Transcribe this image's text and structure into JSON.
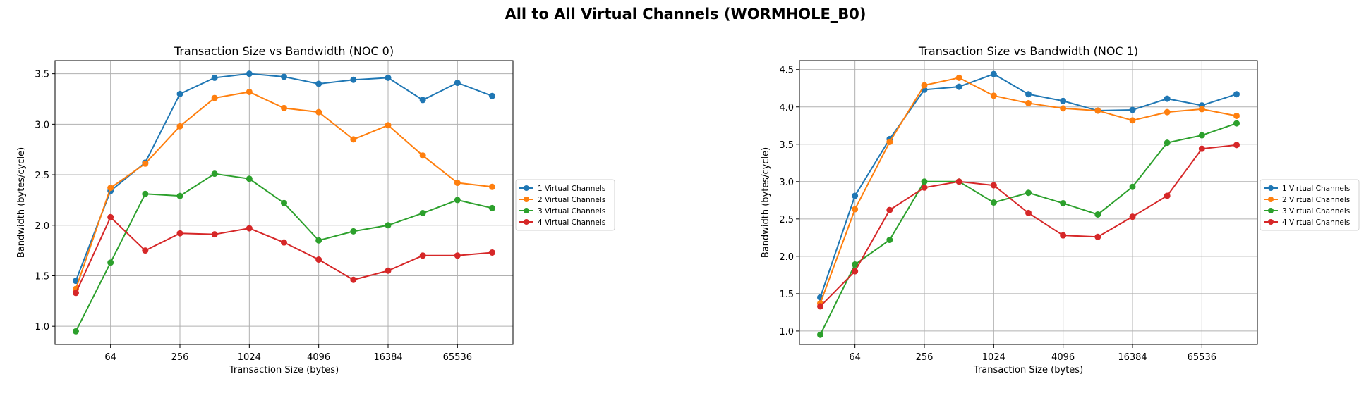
{
  "figure": {
    "title": "All to All Virtual Channels (WORMHOLE_B0)"
  },
  "chart_data": [
    {
      "type": "line",
      "title": "Transaction Size vs Bandwidth (NOC 0)",
      "xlabel": "Transaction Size (bytes)",
      "ylabel": "Bandwidth (bytes/cycle)",
      "xscale": "log2",
      "x": [
        32,
        64,
        128,
        256,
        512,
        1024,
        2048,
        4096,
        8192,
        16384,
        32768,
        65536,
        131072
      ],
      "xticks": [
        64,
        256,
        1024,
        4096,
        16384,
        65536
      ],
      "xtick_labels": [
        "64",
        "256",
        "1024",
        "4096",
        "16384",
        "65536"
      ],
      "ylim": [
        0.82,
        3.63
      ],
      "yticks": [
        1.0,
        1.5,
        2.0,
        2.5,
        3.0,
        3.5
      ],
      "ytick_labels": [
        "1.0",
        "1.5",
        "2.0",
        "2.5",
        "3.0",
        "3.5"
      ],
      "grid": true,
      "legend_position": "right-outside",
      "series": [
        {
          "name": "1 Virtual Channels",
          "color": "#1f77b4",
          "values": [
            1.45,
            2.34,
            2.62,
            3.3,
            3.46,
            3.5,
            3.47,
            3.4,
            3.44,
            3.46,
            3.24,
            3.41,
            3.28
          ]
        },
        {
          "name": "2 Virtual Channels",
          "color": "#ff7f0e",
          "values": [
            1.37,
            2.37,
            2.61,
            2.98,
            3.26,
            3.32,
            3.16,
            3.12,
            2.85,
            2.99,
            2.69,
            2.42,
            2.38
          ]
        },
        {
          "name": "3 Virtual Channels",
          "color": "#2ca02c",
          "values": [
            0.95,
            1.63,
            2.31,
            2.29,
            2.51,
            2.46,
            2.22,
            1.85,
            1.94,
            2.0,
            2.12,
            2.25,
            2.17
          ]
        },
        {
          "name": "4 Virtual Channels",
          "color": "#d62728",
          "values": [
            1.33,
            2.08,
            1.75,
            1.92,
            1.91,
            1.97,
            1.83,
            1.66,
            1.46,
            1.55,
            1.7,
            1.7,
            1.73
          ]
        }
      ]
    },
    {
      "type": "line",
      "title": "Transaction Size vs Bandwidth (NOC 1)",
      "xlabel": "Transaction Size (bytes)",
      "ylabel": "Bandwidth (bytes/cycle)",
      "xscale": "log2",
      "x": [
        32,
        64,
        128,
        256,
        512,
        1024,
        2048,
        4096,
        8192,
        16384,
        32768,
        65536,
        131072
      ],
      "xticks": [
        64,
        256,
        1024,
        4096,
        16384,
        65536
      ],
      "xtick_labels": [
        "64",
        "256",
        "1024",
        "4096",
        "16384",
        "65536"
      ],
      "ylim": [
        0.82,
        4.62
      ],
      "yticks": [
        1.0,
        1.5,
        2.0,
        2.5,
        3.0,
        3.5,
        4.0,
        4.5
      ],
      "ytick_labels": [
        "1.0",
        "1.5",
        "2.0",
        "2.5",
        "3.0",
        "3.5",
        "4.0",
        "4.5"
      ],
      "grid": true,
      "legend_position": "right-outside",
      "series": [
        {
          "name": "1 Virtual Channels",
          "color": "#1f77b4",
          "values": [
            1.45,
            2.81,
            3.57,
            4.23,
            4.27,
            4.44,
            4.17,
            4.08,
            3.95,
            3.96,
            4.11,
            4.02,
            4.17
          ]
        },
        {
          "name": "2 Virtual Channels",
          "color": "#ff7f0e",
          "values": [
            1.37,
            2.63,
            3.53,
            4.29,
            4.39,
            4.15,
            4.05,
            3.98,
            3.95,
            3.82,
            3.93,
            3.97,
            3.88
          ]
        },
        {
          "name": "3 Virtual Channels",
          "color": "#2ca02c",
          "values": [
            0.95,
            1.89,
            2.22,
            3.0,
            3.0,
            2.72,
            2.85,
            2.71,
            2.56,
            2.93,
            3.52,
            3.62,
            3.78
          ]
        },
        {
          "name": "4 Virtual Channels",
          "color": "#d62728",
          "values": [
            1.33,
            1.8,
            2.62,
            2.92,
            3.0,
            2.95,
            2.58,
            2.28,
            2.26,
            2.53,
            2.81,
            3.44,
            3.49
          ]
        }
      ]
    }
  ]
}
